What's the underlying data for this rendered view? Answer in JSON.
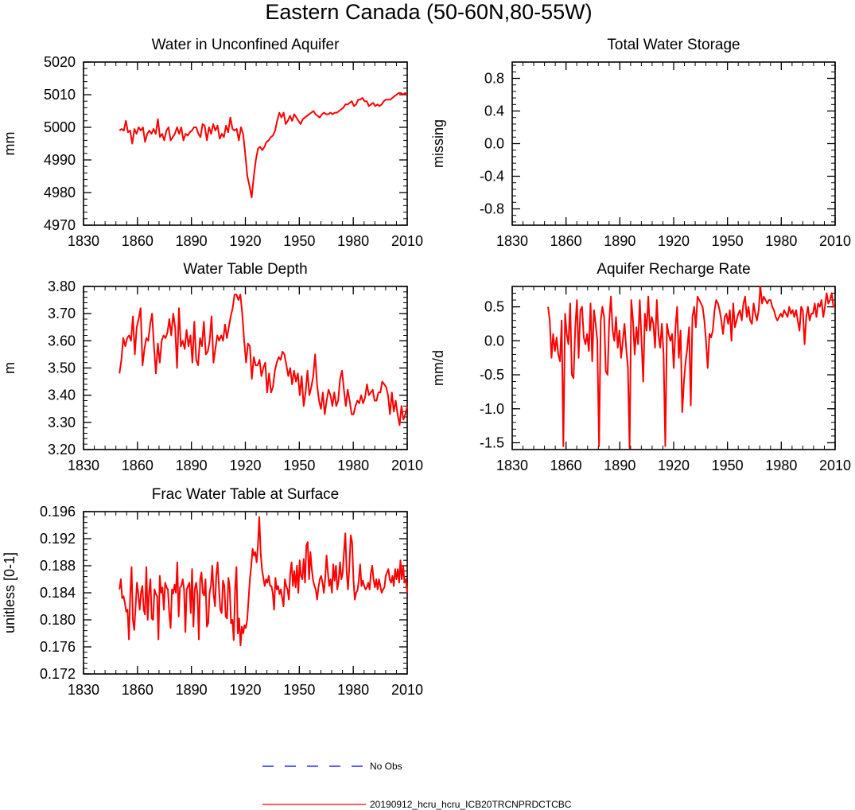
{
  "figure": {
    "title": "Eastern Canada (50-60N,80-55W)"
  },
  "legend": {
    "items": [
      {
        "label": "No Obs",
        "color": "#0000ff",
        "style": "dashed"
      },
      {
        "label": "20190912_hcru_hcru_ICB20TRCNPRDCTCBC",
        "color": "#ff0000",
        "style": "solid"
      }
    ]
  },
  "colors": {
    "series": "#ff0000",
    "obs": "#0000ff",
    "axis": "#000000"
  },
  "chart_data": [
    {
      "type": "line",
      "title": "Water in Unconfined Aquifer",
      "ylabel": "mm",
      "xlim": [
        1830,
        2010
      ],
      "ylim": [
        4970,
        5020
      ],
      "xticks": [
        1830,
        1860,
        1890,
        1920,
        1950,
        1980,
        2010
      ],
      "xtick_labels": [
        "1830",
        "1860",
        "1890",
        "1920",
        "1950",
        "1980",
        "2010"
      ],
      "yticks": [
        4970,
        4980,
        4990,
        5000,
        5010,
        5020
      ],
      "ytick_labels": [
        "4970",
        "4980",
        "4990",
        "5000",
        "5010",
        "5020"
      ],
      "series": [
        {
          "x0": 1850,
          "values": [
            4999,
            4999.5,
            4999,
            5002,
            4998.5,
            4999,
            4995,
            4999.5,
            4998,
            5000,
            4999,
            5000,
            4995.5,
            4998,
            4999,
            4998,
            4999.5,
            4998,
            5002.5,
            4997,
            4998,
            4996,
            4999,
            5000,
            4996,
            4997,
            4998,
            5000,
            4998,
            5000,
            4996,
            4998,
            4997.5,
            4998.5,
            4999,
            5000,
            5000,
            4998,
            4997,
            5001,
            5000.5,
            4996,
            5000,
            4998,
            5001,
            4999,
            5000.5,
            4996.5,
            4998,
            4997,
            5000.5,
            4998.5,
            5003,
            4999.5,
            4999,
            4999.5,
            4996,
            5000,
            4998,
            4992,
            4985,
            4982,
            4978.5,
            4985,
            4990,
            4993.5,
            4994,
            4993,
            4994,
            4995.5,
            4996,
            4997,
            4997.5,
            4999,
            5002,
            5004.5,
            5003,
            5004.5,
            5001,
            5002,
            5003.5,
            5002,
            5004,
            5003,
            5002,
            5001,
            5002.5,
            5003,
            5003.5,
            5004,
            5004.5,
            5005,
            5004,
            5003.5,
            5003,
            5004,
            5004.5,
            5004,
            5004,
            5004.5,
            5004,
            5004.5,
            5004.5,
            5005,
            5005.5,
            5006,
            5007,
            5007,
            5007.5,
            5008,
            5006.5,
            5007,
            5008.5,
            5008.5,
            5009,
            5008,
            5008,
            5006.5,
            5007,
            5007.5,
            5006.5,
            5007,
            5006.5,
            5007,
            5008,
            5008.5,
            5008.5,
            5008.5,
            5009,
            5009.5,
            5010,
            5010.5,
            5010.5,
            5010,
            5010.5,
            5010
          ]
        }
      ]
    },
    {
      "type": "line",
      "title": "Total Water Storage",
      "ylabel": "missing",
      "xlim": [
        1830,
        2010
      ],
      "ylim": [
        -1,
        1
      ],
      "xticks": [
        1830,
        1860,
        1890,
        1920,
        1950,
        1980,
        2010
      ],
      "xtick_labels": [
        "1830",
        "1860",
        "1890",
        "1920",
        "1950",
        "1980",
        "2010"
      ],
      "yticks": [
        -0.8,
        -0.4,
        0.0,
        0.4,
        0.8
      ],
      "ytick_labels": [
        "-0.8",
        "-0.4",
        "0.0",
        "0.4",
        "0.8"
      ],
      "series": []
    },
    {
      "type": "line",
      "title": "Water Table Depth",
      "ylabel": "m",
      "xlim": [
        1830,
        2010
      ],
      "ylim": [
        3.2,
        3.8
      ],
      "xticks": [
        1830,
        1860,
        1890,
        1920,
        1950,
        1980,
        2010
      ],
      "xtick_labels": [
        "1830",
        "1860",
        "1890",
        "1920",
        "1950",
        "1980",
        "2010"
      ],
      "yticks": [
        3.2,
        3.3,
        3.4,
        3.5,
        3.6,
        3.7,
        3.8
      ],
      "ytick_labels": [
        "3.20",
        "3.30",
        "3.40",
        "3.50",
        "3.60",
        "3.70",
        "3.80"
      ],
      "series": [
        {
          "x0": 1850,
          "values": [
            3.48,
            3.53,
            3.61,
            3.58,
            3.61,
            3.62,
            3.6,
            3.69,
            3.55,
            3.65,
            3.68,
            3.72,
            3.51,
            3.57,
            3.61,
            3.6,
            3.66,
            3.7,
            3.58,
            3.48,
            3.59,
            3.52,
            3.6,
            3.62,
            3.61,
            3.63,
            3.68,
            3.62,
            3.7,
            3.65,
            3.5,
            3.72,
            3.58,
            3.6,
            3.57,
            3.64,
            3.58,
            3.62,
            3.52,
            3.67,
            3.53,
            3.51,
            3.61,
            3.58,
            3.67,
            3.55,
            3.56,
            3.6,
            3.69,
            3.52,
            3.57,
            3.62,
            3.6,
            3.62,
            3.6,
            3.66,
            3.61,
            3.65,
            3.69,
            3.72,
            3.77,
            3.77,
            3.75,
            3.77,
            3.7,
            3.6,
            3.52,
            3.59,
            3.58,
            3.46,
            3.54,
            3.51,
            3.51,
            3.53,
            3.47,
            3.5,
            3.52,
            3.41,
            3.48,
            3.41,
            3.43,
            3.49,
            3.52,
            3.54,
            3.53,
            3.56,
            3.55,
            3.51,
            3.47,
            3.5,
            3.44,
            3.49,
            3.45,
            3.48,
            3.4,
            3.47,
            3.36,
            3.41,
            3.49,
            3.4,
            3.43,
            3.47,
            3.55,
            3.44,
            3.38,
            3.35,
            3.41,
            3.33,
            3.38,
            3.42,
            3.4,
            3.36,
            3.41,
            3.36,
            3.38,
            3.46,
            3.49,
            3.42,
            3.36,
            3.42,
            3.38,
            3.33,
            3.33,
            3.36,
            3.38,
            3.37,
            3.4,
            3.37,
            3.39,
            3.44,
            3.4,
            3.41,
            3.42,
            3.38,
            3.38,
            3.41,
            3.41,
            3.45,
            3.44,
            3.43,
            3.4,
            3.33,
            3.41,
            3.34,
            3.38,
            3.33,
            3.29,
            3.36,
            3.31,
            3.33,
            3.36
          ]
        }
      ]
    },
    {
      "type": "line",
      "title": "Aquifer Recharge Rate",
      "ylabel": "mm/d",
      "xlim": [
        1830,
        2010
      ],
      "ylim": [
        -1.6,
        0.8
      ],
      "xticks": [
        1830,
        1860,
        1890,
        1920,
        1950,
        1980,
        2010
      ],
      "xtick_labels": [
        "1830",
        "1860",
        "1890",
        "1920",
        "1950",
        "1980",
        "2010"
      ],
      "yticks": [
        -1.5,
        -1.0,
        -0.5,
        0.0,
        0.5
      ],
      "ytick_labels": [
        "-1.5",
        "-1.0",
        "-0.5",
        "0.0",
        "0.5"
      ],
      "series": [
        {
          "x0": 1850,
          "values": [
            0.5,
            0.3,
            -0.25,
            0.1,
            -0.15,
            0.05,
            -0.2,
            -0.3,
            0.3,
            -1.55,
            0.4,
            0.1,
            -0.05,
            0.55,
            -0.5,
            -0.55,
            0.2,
            0.6,
            -0.25,
            0.45,
            0.5,
            0.05,
            -0.05,
            0.1,
            -0.15,
            0.55,
            -0.3,
            0.45,
            0.25,
            0.0,
            -1.55,
            0.3,
            0.5,
            0.35,
            -0.45,
            -0.5,
            0.3,
            0.65,
            0.15,
            0.0,
            0.35,
            -0.1,
            0.15,
            -0.25,
            0.0,
            0.25,
            -0.1,
            -0.4,
            -1.58,
            0.6,
            0.3,
            -0.2,
            0.2,
            -0.05,
            0.6,
            0.0,
            -0.6,
            0.4,
            0.15,
            0.65,
            0.15,
            0.35,
            0.25,
            -0.1,
            0.6,
            0.1,
            -0.1,
            0.25,
            -0.2,
            -1.55,
            0.25,
            0.1,
            0.0,
            0.1,
            -0.4,
            0.2,
            0.5,
            -0.25,
            0.15,
            -1.05,
            -0.6,
            -0.3,
            -0.1,
            0.2,
            -0.95,
            0.35,
            0.5,
            0.2,
            0.65,
            0.6,
            0.55,
            0.5,
            0.3,
            0.0,
            -0.4,
            0.1,
            0.05,
            0.15,
            0.45,
            0.6,
            0.55,
            0.45,
            0.3,
            0.1,
            0.35,
            0.4,
            0.25,
            0.45,
            0.0,
            0.55,
            0.2,
            0.3,
            0.4,
            0.45,
            0.3,
            0.55,
            0.65,
            0.35,
            0.5,
            0.3,
            0.25,
            0.55,
            0.4,
            0.3,
            0.45,
            0.8,
            0.55,
            0.65,
            0.6,
            0.55,
            0.6,
            0.6,
            0.5,
            0.45,
            0.35,
            0.3,
            0.35,
            0.4,
            0.35,
            0.45,
            0.4,
            0.35,
            0.5,
            0.4,
            0.45,
            0.35,
            0.45,
            0.3,
            0.15,
            0.5,
            0.45,
            -0.05,
            0.35,
            0.5,
            0.3,
            0.4,
            0.4,
            0.55,
            0.35,
            0.55,
            0.5,
            0.6,
            0.35,
            0.5,
            0.7,
            0.55,
            0.6,
            0.7,
            0.5,
            0.5
          ]
        }
      ]
    },
    {
      "type": "line",
      "title": "Frac Water Table at Surface",
      "ylabel": "unitless [0-1]",
      "xlim": [
        1830,
        2010
      ],
      "ylim": [
        0.172,
        0.196
      ],
      "xticks": [
        1830,
        1860,
        1890,
        1920,
        1950,
        1980,
        2010
      ],
      "xtick_labels": [
        "1830",
        "1860",
        "1890",
        "1920",
        "1950",
        "1980",
        "2010"
      ],
      "yticks": [
        0.172,
        0.176,
        0.18,
        0.184,
        0.188,
        0.192,
        0.196
      ],
      "ytick_labels": [
        "0.172",
        "0.176",
        "0.180",
        "0.184",
        "0.188",
        "0.192",
        "0.196"
      ],
      "series": [
        {
          "x0": 1850,
          "values": [
            0.1845,
            0.186,
            0.1832,
            0.1835,
            0.1825,
            0.1812,
            0.1815,
            0.1771,
            0.1835,
            0.1878,
            0.18,
            0.1785,
            0.182,
            0.1855,
            0.1838,
            0.1815,
            0.184,
            0.185,
            0.1815,
            0.1808,
            0.1878,
            0.18,
            0.184,
            0.186,
            0.1802,
            0.18,
            0.1845,
            0.1838,
            0.1835,
            0.1771,
            0.1865,
            0.184,
            0.1848,
            0.1815,
            0.1855,
            0.1848,
            0.1845,
            0.181,
            0.1788,
            0.1845,
            0.1839,
            0.1852,
            0.184,
            0.1885,
            0.1805,
            0.1848,
            0.185,
            0.186,
            0.1845,
            0.1782,
            0.1845,
            0.185,
            0.1855,
            0.181,
            0.1875,
            0.179,
            0.1845,
            0.1855,
            0.1838,
            0.1771,
            0.186,
            0.187,
            0.184,
            0.1836,
            0.186,
            0.179,
            0.1795,
            0.184,
            0.185,
            0.188,
            0.1838,
            0.182,
            0.1865,
            0.1885,
            0.1848,
            0.1815,
            0.181,
            0.1858,
            0.185,
            0.1805,
            0.1802,
            0.1862,
            0.1848,
            0.1795,
            0.18,
            0.177,
            0.1845,
            0.1878,
            0.178,
            0.1802,
            0.1762,
            0.179,
            0.178,
            0.1792,
            0.1788,
            0.18,
            0.183,
            0.186,
            0.188,
            0.1905,
            0.1895,
            0.19,
            0.1885,
            0.191,
            0.1952,
            0.19,
            0.1875,
            0.1862,
            0.185,
            0.186,
            0.1855,
            0.1865,
            0.185,
            0.185,
            0.184,
            0.1815,
            0.1862,
            0.1845,
            0.185,
            0.1838,
            0.1845,
            0.1832,
            0.182,
            0.186,
            0.185,
            0.1845,
            0.183,
            0.1868,
            0.1885,
            0.185,
            0.1872,
            0.1848,
            0.188,
            0.184,
            0.1888,
            0.1865,
            0.186,
            0.189,
            0.1855,
            0.191,
            0.1915,
            0.186,
            0.19,
            0.1875,
            0.1858,
            0.185,
            0.1845,
            0.183,
            0.1848,
            0.186,
            0.1865,
            0.1855,
            0.184,
            0.1862,
            0.1895,
            0.187,
            0.185,
            0.186,
            0.184,
            0.1882,
            0.1858,
            0.188,
            0.1845,
            0.1858,
            0.1885,
            0.186,
            0.187,
            0.19,
            0.1928,
            0.187,
            0.1845,
            0.188,
            0.1925,
            0.1915,
            0.186,
            0.183,
            0.184,
            0.1843,
            0.1858,
            0.1882,
            0.185,
            0.1858,
            0.185,
            0.1845,
            0.1848,
            0.1855,
            0.1845,
            0.187,
            0.188,
            0.186,
            0.1848,
            0.186,
            0.1845,
            0.186,
            0.185,
            0.184,
            0.1845,
            0.1848,
            0.1865,
            0.187,
            0.1875,
            0.186,
            0.1855,
            0.1865,
            0.185,
            0.1875,
            0.186,
            0.1875,
            0.1855,
            0.1888,
            0.186,
            0.188,
            0.1855,
            0.186,
            0.184
          ]
        }
      ]
    }
  ]
}
